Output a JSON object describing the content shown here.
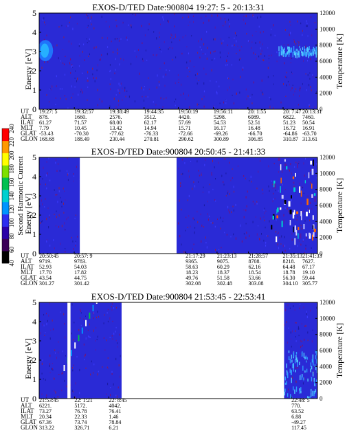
{
  "figure": {
    "colorbar": {
      "label": "Second Harmonic Current",
      "ticks": [
        "40",
        "60",
        "80",
        "100",
        "120",
        "140",
        "160",
        "180",
        "200",
        "220",
        "240"
      ],
      "colors": [
        "#000000",
        "#3a0058",
        "#2b00a8",
        "#2d2df0",
        "#0094ff",
        "#00d0d0",
        "#00c050",
        "#7fe000",
        "#ffff00",
        "#ff9900",
        "#ff0000"
      ]
    },
    "row_labels": [
      "UT",
      "ALT",
      "ILAT",
      "MLT",
      "GLAT",
      "GLON"
    ],
    "background_color": "#2a2ad6"
  },
  "chart_data": [
    {
      "type": "heatmap",
      "title": "EXOS-D/TED   Date:900804  19:27: 5 - 20:13:31",
      "ylabel": "Energy [eV]",
      "y2label": "Temperature [K]",
      "ylim": [
        0,
        5
      ],
      "y_ticks": [
        "0",
        "1",
        "2",
        "3",
        "4",
        "5"
      ],
      "y2lim": [
        0,
        12000
      ],
      "y2_ticks": [
        "0",
        "2000",
        "4000",
        "6000",
        "8000",
        "10000",
        "12000"
      ],
      "time_range": [
        "19:27:05",
        "20:13:31"
      ],
      "columns": [
        {
          "t": "19:27:05",
          "UT": "19:27: 5",
          "ALT": "878.",
          "ILAT": "61.27",
          "MLT": "7.79",
          "GLAT": "-53.43",
          "GLON": "168.68"
        },
        {
          "t": "19:32:57",
          "UT": "19:32:57",
          "ALT": "1660.",
          "ILAT": "71.57",
          "MLT": "10.45",
          "GLAT": "-70.30",
          "GLON": "188.49"
        },
        {
          "t": "19:38:49",
          "UT": "19:38:49",
          "ALT": "2576.",
          "ILAT": "68.00",
          "MLT": "13.42",
          "GLAT": "-77.62",
          "GLON": "230.44"
        },
        {
          "t": "19:44:35",
          "UT": "19:44:35",
          "ALT": "3512.",
          "ILAT": "62.17",
          "MLT": "14.94",
          "GLAT": "-76.33",
          "GLON": "270.81"
        },
        {
          "t": "19:50:19",
          "UT": "19:50:19",
          "ALT": "4420.",
          "ILAT": "57.69",
          "MLT": "15.71",
          "GLAT": "-72.66",
          "GLON": "290.62"
        },
        {
          "t": "19:56:11",
          "UT": "19:56:11",
          "ALT": "5298.",
          "ILAT": "54.53",
          "MLT": "16.17",
          "GLAT": "-69.26",
          "GLON": "300.89"
        },
        {
          "t": "20:01:55",
          "UT": "20: 1:55",
          "ALT": "6089.",
          "ILAT": "52.51",
          "MLT": "16.48",
          "GLAT": "-66.70",
          "GLON": "306.85"
        },
        {
          "t": "20:07:47",
          "UT": "20: 7:47",
          "ALT": "6822.",
          "ILAT": "51.23",
          "MLT": "16.72",
          "GLAT": "-64.86",
          "GLON": "310.87"
        },
        {
          "t": "20:13:31",
          "UT": "20:13:31",
          "ALT": "7460.",
          "ILAT": "50.54",
          "MLT": "16.91",
          "GLAT": "-63.70",
          "GLON": "313.61"
        }
      ],
      "gaps": [],
      "features": [
        {
          "t0": "19:27:05",
          "t1": "19:29:10",
          "e0": 2.5,
          "e1": 3.6,
          "level": "cyan"
        },
        {
          "t0": "20:07:00",
          "t1": "20:13:31",
          "e0": 2.9,
          "e1": 3.3,
          "level": "light-blue"
        }
      ]
    },
    {
      "type": "heatmap",
      "title": "EXOS-D/TED   Date:900804  20:50:45 - 21:41:33",
      "ylabel": "Energy [eV]",
      "y2label": "Temperature [K]",
      "ylim": [
        0,
        5
      ],
      "y_ticks": [
        "0",
        "1",
        "2",
        "3",
        "4",
        "5"
      ],
      "y2lim": [
        0,
        12000
      ],
      "y2_ticks": [
        "0",
        "2000",
        "4000",
        "6000",
        "8000",
        "10000",
        "12000"
      ],
      "time_range": [
        "20:50:45",
        "21:41:33"
      ],
      "columns": [
        {
          "t": "20:50:45",
          "UT": "20:50:45",
          "ALT": "9719.",
          "ILAT": "52.93",
          "MLT": "17.70",
          "GLAT": "43.54",
          "GLON": "301.27"
        },
        {
          "t": "20:57:09",
          "UT": "20:57: 9",
          "ALT": "9783.",
          "ILAT": "54.03",
          "MLT": "17.82",
          "GLAT": "44.75",
          "GLON": "301.42"
        },
        {
          "t": "21:17:29",
          "UT": "21:17:29",
          "ALT": "9365.",
          "ILAT": "58.63",
          "MLT": "18.23",
          "GLAT": "49.76",
          "GLON": "302.08"
        },
        {
          "t": "21:23:13",
          "UT": "21:23:13",
          "ALT": "9075.",
          "ILAT": "60.29",
          "MLT": "18.37",
          "GLAT": "51.58",
          "GLON": "302.48"
        },
        {
          "t": "21:28:57",
          "UT": "21:28:57",
          "ALT": "8708.",
          "ILAT": "62.16",
          "MLT": "18.54",
          "GLAT": "53.66",
          "GLON": "303.08"
        },
        {
          "t": "21:35:13",
          "UT": "21:35:13",
          "ALT": "8218.",
          "ILAT": "64.48",
          "MLT": "18.78",
          "GLAT": "56.30",
          "GLON": "304.10"
        },
        {
          "t": "21:41:33",
          "UT": "21:41:33",
          "ALT": "7627.",
          "ILAT": "67.17",
          "MLT": "19.10",
          "GLAT": "59.44",
          "GLON": "305.77"
        }
      ],
      "gaps": [
        [
          "20:58:10",
          "21:15:50"
        ]
      ],
      "features": [
        {
          "t0": "21:33:00",
          "t1": "21:41:00",
          "e0": 0.8,
          "e1": 5.0,
          "level": "mixed"
        }
      ]
    },
    {
      "type": "heatmap",
      "title": "EXOS-D/TED   Date:900804  21:53:45 - 22:53:41",
      "ylabel": "Energy [eV]",
      "y2label": "Temperature [K]",
      "ylim": [
        0,
        5
      ],
      "y_ticks": [
        "0",
        "1",
        "2",
        "3",
        "4",
        "5"
      ],
      "y2lim": [
        0,
        12000
      ],
      "y2_ticks": [
        "0",
        "2000",
        "4000",
        "6000",
        "8000",
        "10000",
        "12000"
      ],
      "time_range": [
        "21:53:45",
        "22:53:41"
      ],
      "columns": [
        {
          "t": "21:53:45",
          "UT": "21:53:45",
          "ALT": "6221.",
          "ILAT": "73.27",
          "MLT": "20.34",
          "GLAT": "67.36",
          "GLON": "313.22"
        },
        {
          "t": "22:01:21",
          "UT": "22: 1:21",
          "ALT": "5172.",
          "ILAT": "76.78",
          "MLT": "22.33",
          "GLAT": "73.74",
          "GLON": "326.71"
        },
        {
          "t": "22:08:45",
          "UT": "22: 8:45",
          "ALT": "4042.",
          "ILAT": "76.41",
          "MLT": "1.46",
          "GLAT": "78.84",
          "GLON": "6.21"
        },
        {
          "t": "22:48:05",
          "UT": "22:48: 5",
          "ALT": "770.",
          "ILAT": "63.52",
          "MLT": "6.88",
          "GLAT": "-49.27",
          "GLON": "117.45"
        }
      ],
      "gaps": [
        [
          "21:59:50",
          "22:00:30"
        ],
        [
          "22:11:30",
          "22:46:30"
        ]
      ],
      "features": [
        {
          "t0": "21:59:00",
          "t1": "22:06:00",
          "e0": 1.5,
          "e1": 5.0,
          "level": "streak"
        },
        {
          "t0": "22:46:30",
          "t1": "22:53:41",
          "e0": 0.0,
          "e1": 2.6,
          "level": "light-blue"
        }
      ]
    }
  ]
}
